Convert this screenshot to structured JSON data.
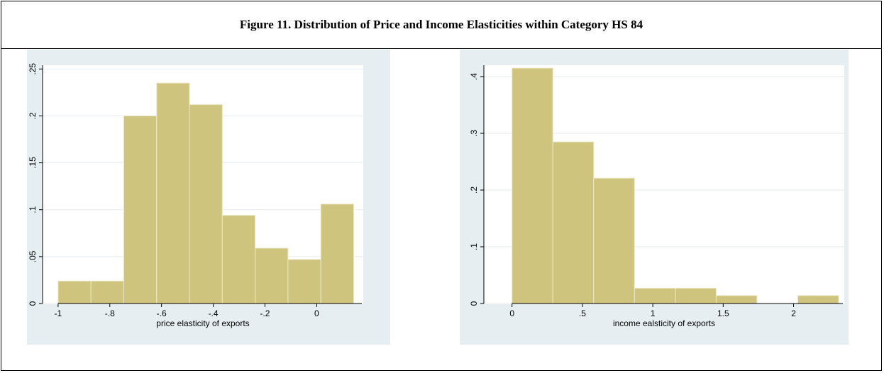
{
  "title": "Figure 11. Distribution of Price and Income Elasticities within Category HS 84",
  "colors": {
    "background": "#e6eef2",
    "plot_bg": "#ffffff",
    "bar_fill": "#cfc47e",
    "bar_edge": "#ece8c8",
    "grid": "#e5ecef",
    "axis": "#000000"
  },
  "chart_data": [
    {
      "type": "bar",
      "xlabel": "price elasticity of exports",
      "ylabel": "",
      "xlim": [
        -1.06,
        0.18
      ],
      "ylim": [
        0,
        0.254
      ],
      "x_ticks": [
        -1,
        -0.8,
        -0.6,
        -0.4,
        -0.2,
        0
      ],
      "x_tick_labels": [
        "-1",
        "-.8",
        "-.6",
        "-.4",
        "-.2",
        "0"
      ],
      "y_ticks": [
        0,
        0.05,
        0.1,
        0.15,
        0.2,
        0.25
      ],
      "y_tick_labels": [
        "0",
        ".05",
        ".1",
        ".15",
        ".2",
        ".25"
      ],
      "grid": true,
      "bins": [
        {
          "start": -1.0,
          "end": -0.873,
          "value": 0.024
        },
        {
          "start": -0.873,
          "end": -0.746,
          "value": 0.024
        },
        {
          "start": -0.746,
          "end": -0.619,
          "value": 0.2
        },
        {
          "start": -0.619,
          "end": -0.492,
          "value": 0.235
        },
        {
          "start": -0.492,
          "end": -0.365,
          "value": 0.212
        },
        {
          "start": -0.365,
          "end": -0.238,
          "value": 0.094
        },
        {
          "start": -0.238,
          "end": -0.111,
          "value": 0.059
        },
        {
          "start": -0.111,
          "end": 0.016,
          "value": 0.047
        },
        {
          "start": 0.016,
          "end": 0.143,
          "value": 0.106
        }
      ]
    },
    {
      "type": "bar",
      "xlabel": "income ealsticity of exports",
      "ylabel": "",
      "xlim": [
        -0.2,
        2.36
      ],
      "ylim": [
        0,
        0.42
      ],
      "x_ticks": [
        0,
        0.5,
        1,
        1.5,
        2
      ],
      "x_tick_labels": [
        "0",
        ".5",
        "1",
        "1.5",
        "2"
      ],
      "y_ticks": [
        0,
        0.1,
        0.2,
        0.3,
        0.4
      ],
      "y_tick_labels": [
        "0",
        ".1",
        ".2",
        ".3",
        ".4"
      ],
      "grid": true,
      "bins": [
        {
          "start": 0.0,
          "end": 0.29,
          "value": 0.415
        },
        {
          "start": 0.29,
          "end": 0.58,
          "value": 0.285
        },
        {
          "start": 0.58,
          "end": 0.87,
          "value": 0.221
        },
        {
          "start": 0.87,
          "end": 1.16,
          "value": 0.027
        },
        {
          "start": 1.16,
          "end": 1.45,
          "value": 0.027
        },
        {
          "start": 1.45,
          "end": 1.74,
          "value": 0.014
        },
        {
          "start": 1.74,
          "end": 2.03,
          "value": 0
        },
        {
          "start": 2.03,
          "end": 2.32,
          "value": 0.014
        }
      ]
    }
  ]
}
